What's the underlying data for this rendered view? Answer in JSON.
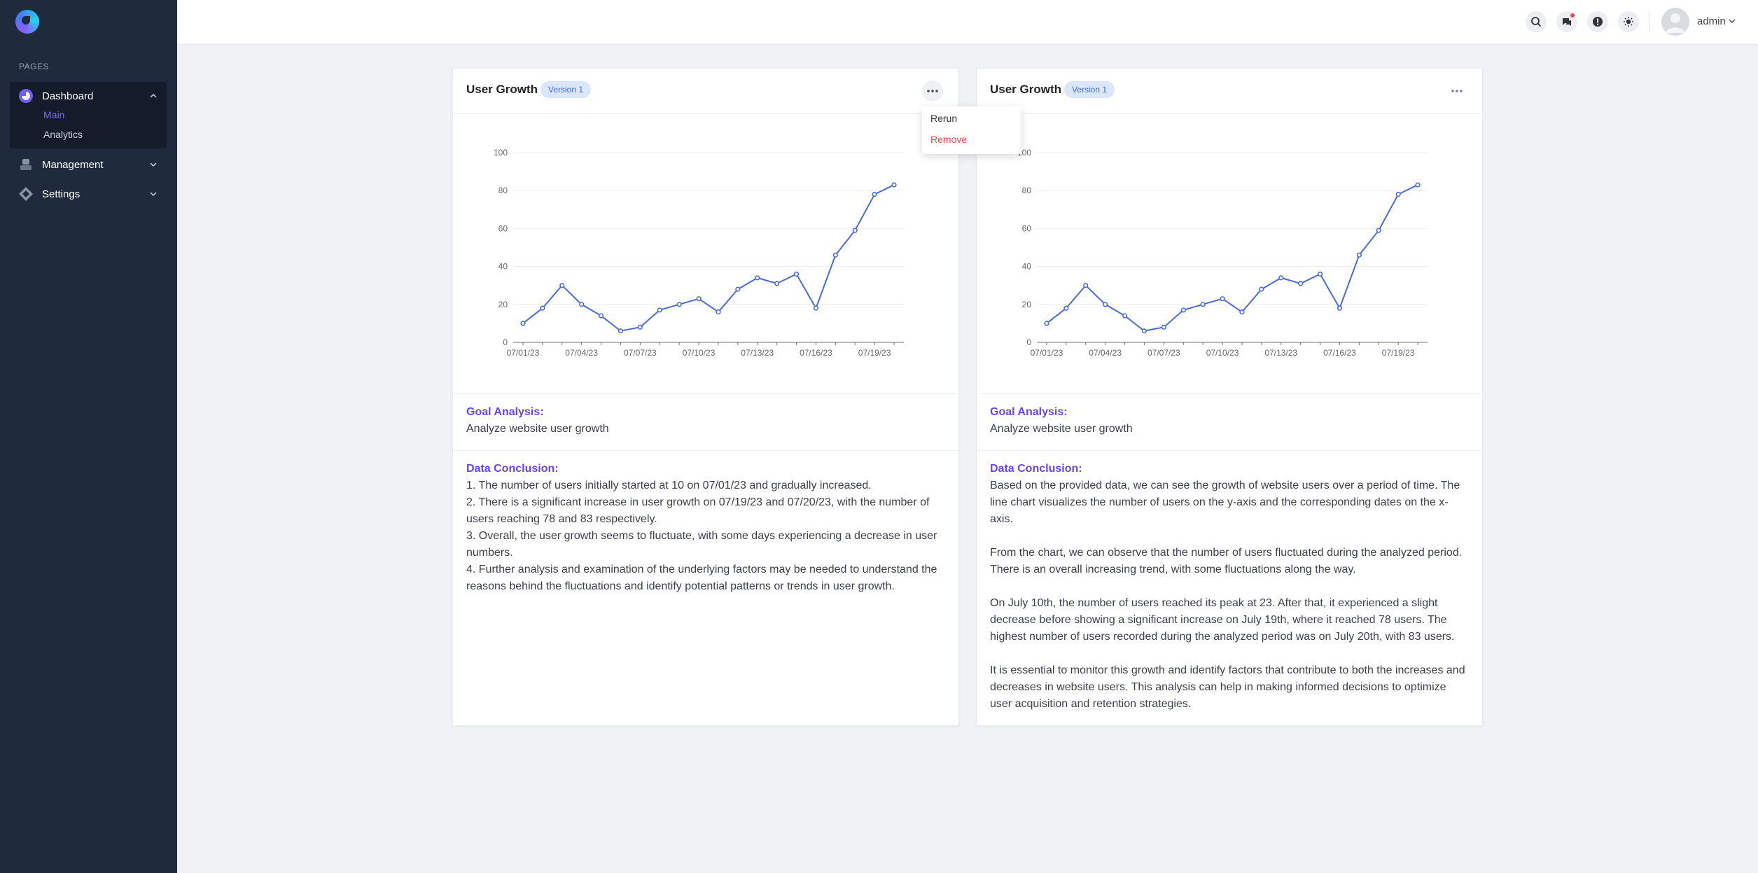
{
  "sidebar": {
    "section_label": "PAGES",
    "items": [
      {
        "label": "Dashboard",
        "icon": "dashboard-icon",
        "expanded": true,
        "children": [
          {
            "label": "Main",
            "active": true
          },
          {
            "label": "Analytics",
            "active": false
          }
        ]
      },
      {
        "label": "Management",
        "icon": "management-icon",
        "expanded": false
      },
      {
        "label": "Settings",
        "icon": "settings-icon",
        "expanded": false
      }
    ]
  },
  "header": {
    "icons": [
      "search-icon",
      "chat-icon",
      "alert-icon",
      "theme-sun-icon"
    ],
    "user_name": "admin"
  },
  "dropdown": {
    "items": [
      {
        "label": "Rerun"
      },
      {
        "label": "Remove"
      }
    ]
  },
  "cards": [
    {
      "title": "User Growth",
      "version": "Version 1",
      "goal_label": "Goal Analysis:",
      "goal_text": "Analyze website user growth",
      "conclusion_label": "Data Conclusion:",
      "conclusion_paragraphs": [
        "1. The number of users initially started at 10 on 07/01/23 and gradually increased.\n2. There is a significant increase in user growth on 07/19/23 and 07/20/23, with the number of users reaching 78 and 83 respectively.\n3. Overall, the user growth seems to fluctuate, with some days experiencing a decrease in user numbers.\n4. Further analysis and examination of the underlying factors may be needed to understand the reasons behind the fluctuations and identify potential patterns or trends in user growth."
      ]
    },
    {
      "title": "User Growth",
      "version": "Version 1",
      "goal_label": "Goal Analysis:",
      "goal_text": "Analyze website user growth",
      "conclusion_label": "Data Conclusion:",
      "conclusion_paragraphs": [
        "Based on the provided data, we can see the growth of website users over a period of time. The line chart visualizes the number of users on the y-axis and the corresponding dates on the x-axis.",
        "From the chart, we can observe that the number of users fluctuated during the analyzed period. There is an overall increasing trend, with some fluctuations along the way.",
        "On July 10th, the number of users reached its peak at 23. After that, it experienced a slight decrease before showing a significant increase on July 19th, where it reached 78 users. The highest number of users recorded during the analyzed period was on July 20th, with 83 users.",
        "It is essential to monitor this growth and identify factors that contribute to both the increases and decreases in website users. This analysis can help in making informed decisions to optimize user acquisition and retention strategies."
      ]
    }
  ],
  "chart_data": {
    "type": "line",
    "x": [
      "07/01/23",
      "07/02/23",
      "07/03/23",
      "07/04/23",
      "07/05/23",
      "07/06/23",
      "07/07/23",
      "07/08/23",
      "07/09/23",
      "07/10/23",
      "07/11/23",
      "07/12/23",
      "07/13/23",
      "07/14/23",
      "07/15/23",
      "07/16/23",
      "07/17/23",
      "07/18/23",
      "07/19/23",
      "07/20/23"
    ],
    "x_tick_labels": [
      "07/01/23",
      "07/04/23",
      "07/07/23",
      "07/10/23",
      "07/13/23",
      "07/16/23",
      "07/19/23"
    ],
    "values": [
      10,
      18,
      30,
      20,
      14,
      6,
      8,
      17,
      20,
      23,
      16,
      28,
      34,
      31,
      36,
      18,
      46,
      59,
      78,
      83
    ],
    "ylim": [
      0,
      100
    ],
    "y_ticks": [
      0,
      20,
      40,
      60,
      80,
      100
    ],
    "grid": true,
    "line_color": "#4a6bd4"
  },
  "colors": {
    "sidebar_bg": "#1f2a3d",
    "accent_purple": "#6348e8",
    "remove_red": "#e5484d",
    "badge_bg": "#dbe6fb"
  }
}
